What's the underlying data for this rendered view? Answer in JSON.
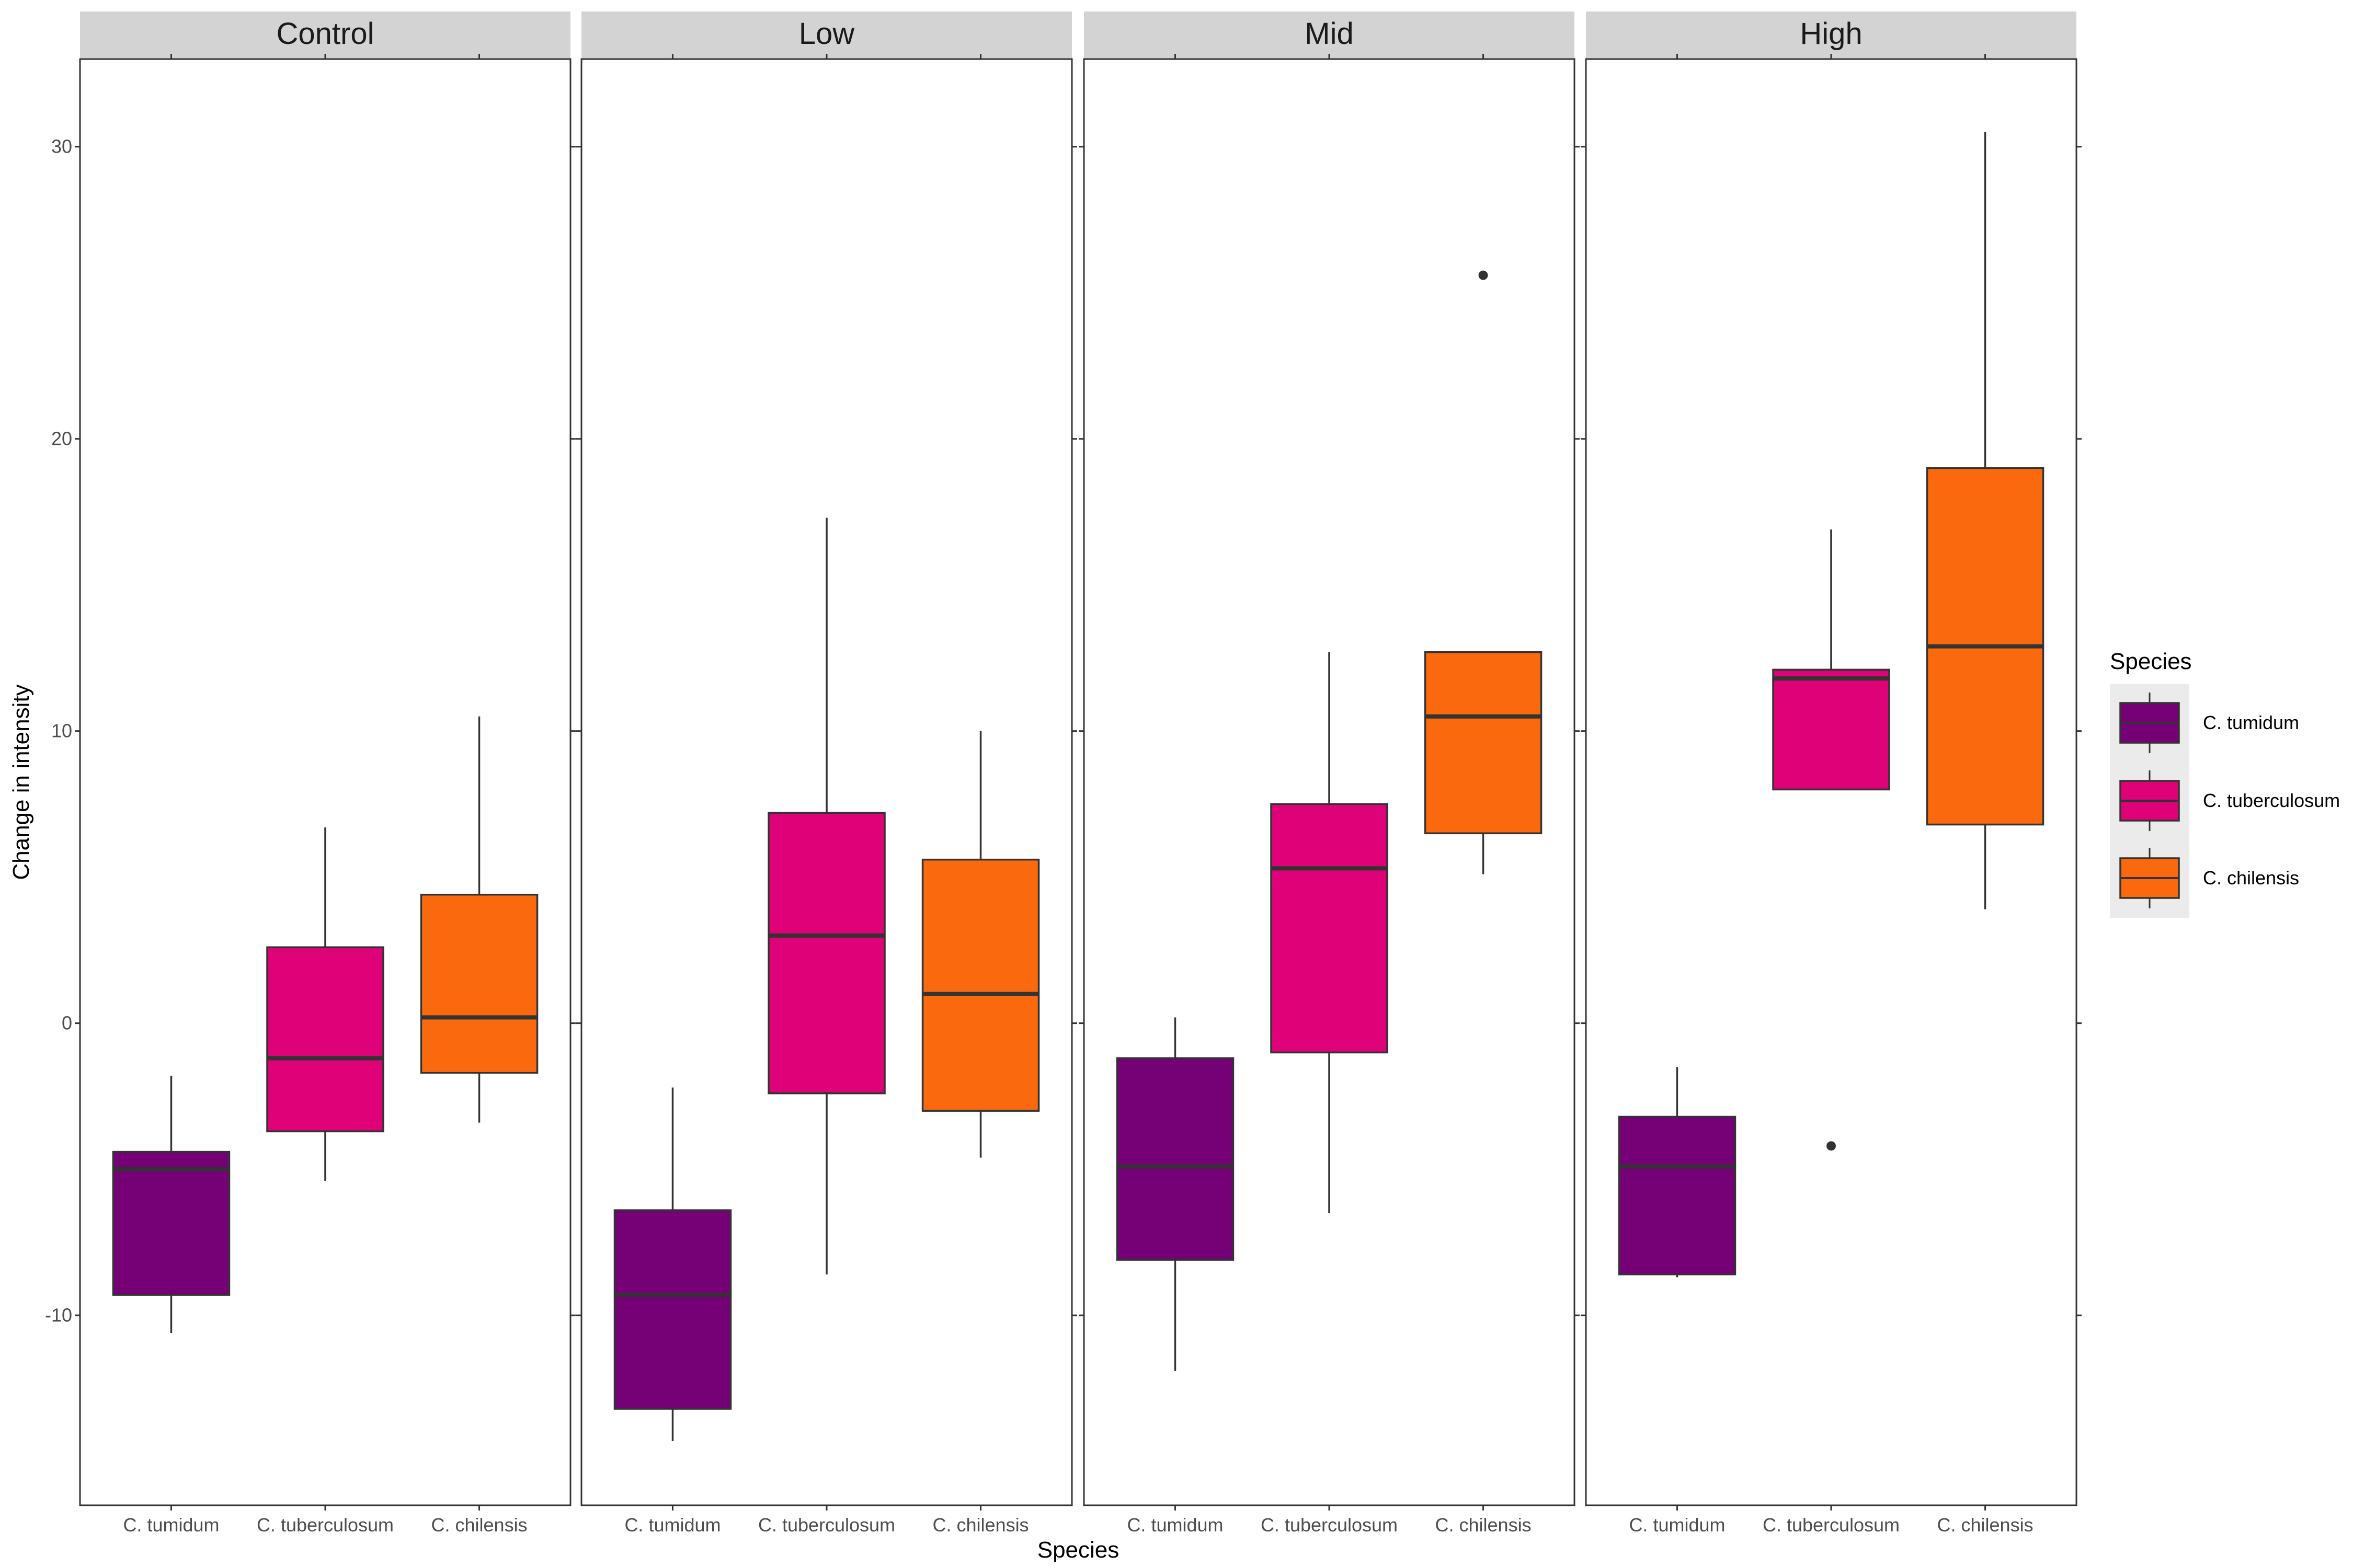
{
  "chart_data": {
    "type": "boxplot",
    "xlabel": "Species",
    "ylabel": "Change in intensity",
    "ylim": [
      -16.5,
      33.0
    ],
    "yticks": [
      -10,
      0,
      10,
      20,
      30
    ],
    "grid": false,
    "facets": [
      "Control",
      "Low",
      "Mid",
      "High"
    ],
    "categories": [
      "C. tumidum",
      "C. tuberculosum",
      "C. chilensis"
    ],
    "legend": {
      "title": "Species",
      "position": "right",
      "entries": [
        "C. tumidum",
        "C. tuberculosum",
        "C. chilensis"
      ]
    },
    "colors": {
      "C. tumidum": "#760076",
      "C. tuberculosum": "#DF0177",
      "C. chilensis": "#FA690D",
      "strip": "#D3D3D3",
      "outline": "#333333"
    },
    "panels": [
      {
        "facet": "Control",
        "boxes": [
          {
            "species": "C. tumidum",
            "lower_whisker": -10.6,
            "q1": -9.3,
            "median": -5.0,
            "q3": -4.4,
            "upper_whisker": -1.8,
            "outliers": []
          },
          {
            "species": "C. tuberculosum",
            "lower_whisker": -5.4,
            "q1": -3.7,
            "median": -1.2,
            "q3": 2.6,
            "upper_whisker": 6.7,
            "outliers": []
          },
          {
            "species": "C. chilensis",
            "lower_whisker": -3.4,
            "q1": -1.7,
            "median": 0.2,
            "q3": 4.4,
            "upper_whisker": 10.5,
            "outliers": []
          }
        ]
      },
      {
        "facet": "Low",
        "boxes": [
          {
            "species": "C. tumidum",
            "lower_whisker": -14.3,
            "q1": -13.2,
            "median": -9.3,
            "q3": -6.4,
            "upper_whisker": -2.2,
            "outliers": []
          },
          {
            "species": "C. tuberculosum",
            "lower_whisker": -8.6,
            "q1": -2.4,
            "median": 3.0,
            "q3": 7.2,
            "upper_whisker": 17.3,
            "outliers": []
          },
          {
            "species": "C. chilensis",
            "lower_whisker": -4.6,
            "q1": -3.0,
            "median": 1.0,
            "q3": 5.6,
            "upper_whisker": 10.0,
            "outliers": []
          }
        ]
      },
      {
        "facet": "Mid",
        "boxes": [
          {
            "species": "C. tumidum",
            "lower_whisker": -11.9,
            "q1": -8.1,
            "median": -4.9,
            "q3": -1.2,
            "upper_whisker": 0.2,
            "outliers": []
          },
          {
            "species": "C. tuberculosum",
            "lower_whisker": -6.5,
            "q1": -1.0,
            "median": 5.3,
            "q3": 7.5,
            "upper_whisker": 12.7,
            "outliers": []
          },
          {
            "species": "C. chilensis",
            "lower_whisker": 5.1,
            "q1": 6.5,
            "median": 10.5,
            "q3": 12.7,
            "upper_whisker": 12.7,
            "outliers": [
              25.6
            ]
          }
        ]
      },
      {
        "facet": "High",
        "boxes": [
          {
            "species": "C. tumidum",
            "lower_whisker": -8.7,
            "q1": -8.6,
            "median": -4.9,
            "q3": -3.2,
            "upper_whisker": -1.5,
            "outliers": []
          },
          {
            "species": "C. tuberculosum",
            "lower_whisker": 8.0,
            "q1": 8.0,
            "median": 11.8,
            "q3": 12.1,
            "upper_whisker": 16.9,
            "outliers": [
              -4.2
            ]
          },
          {
            "species": "C. chilensis",
            "lower_whisker": 3.9,
            "q1": 6.8,
            "median": 12.9,
            "q3": 19.0,
            "upper_whisker": 30.5,
            "outliers": []
          }
        ]
      }
    ]
  }
}
